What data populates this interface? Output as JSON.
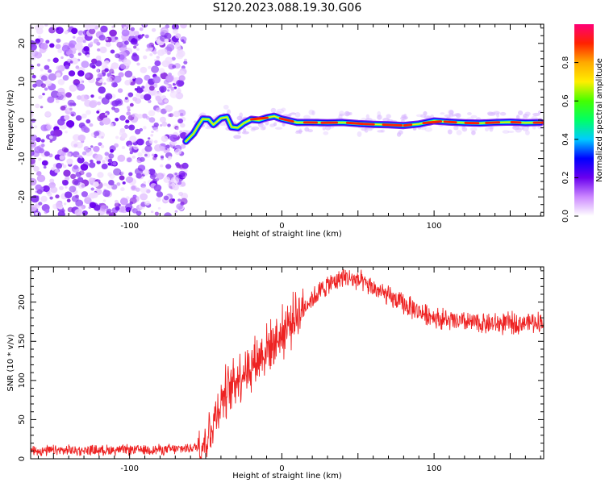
{
  "title": "S120.2023.088.19.30.G06",
  "colors": {
    "snr_line": "#ee2222",
    "noise_purple": "#7a22ee",
    "colorbar_stops": [
      "#ffffff",
      "#cc88ff",
      "#6a00ee",
      "#0000ff",
      "#00ccff",
      "#00ff66",
      "#44ff00",
      "#ffee00",
      "#ffaa00",
      "#ff2200",
      "#ff0077"
    ]
  },
  "chart_data": [
    {
      "type": "heatmap",
      "xlabel": "Height of straight line (km)",
      "ylabel": "Frequency (Hz)",
      "xlim": [
        -165,
        172
      ],
      "ylim": [
        -25,
        25
      ],
      "xticks": [
        -100,
        0,
        100
      ],
      "yticks": [
        -20,
        -10,
        0,
        10,
        20
      ],
      "noise_region_x": [
        -165,
        -63
      ],
      "track": {
        "x": [
          -63,
          -58,
          -55,
          -52,
          -48,
          -45,
          -40,
          -36,
          -33,
          -29,
          -25,
          -20,
          -15,
          -10,
          -5,
          0,
          10,
          20,
          30,
          40,
          50,
          60,
          70,
          80,
          90,
          100,
          110,
          120,
          130,
          140,
          150,
          160,
          170
        ],
        "freq_hz": [
          -5.5,
          -3.5,
          -1.5,
          0.3,
          0.2,
          -1.2,
          0.5,
          0.8,
          -1.8,
          -2.0,
          -0.8,
          0.2,
          0.0,
          0.6,
          1.0,
          0.3,
          -0.6,
          -0.6,
          -0.7,
          -0.6,
          -0.9,
          -1.1,
          -1.2,
          -1.4,
          -1.0,
          -0.2,
          -0.5,
          -0.7,
          -0.8,
          -0.6,
          -0.5,
          -0.7,
          -0.6
        ]
      },
      "colorbar": {
        "label": "Normalized spectral amplitude",
        "range": [
          0.0,
          1.0
        ],
        "ticks": [
          "0.0",
          "0.2",
          "0.4",
          "0.6",
          "0.8"
        ]
      }
    },
    {
      "type": "line",
      "xlabel": "Height of straight line (km)",
      "ylabel": "SNR (10 * v/v)",
      "xlim": [
        -165,
        172
      ],
      "ylim": [
        0,
        245
      ],
      "xticks": [
        -100,
        0,
        100
      ],
      "yticks": [
        0,
        50,
        100,
        150,
        200
      ],
      "series": [
        {
          "x": [
            -165,
            -120,
            -70,
            -55,
            -50,
            -45,
            -40,
            -35,
            -30,
            -20,
            -10,
            0,
            10,
            20,
            30,
            40,
            50,
            60,
            70,
            80,
            90,
            100,
            110,
            120,
            130,
            140,
            150,
            160,
            172
          ],
          "values": [
            10,
            11,
            12,
            15,
            25,
            45,
            75,
            90,
            102,
            120,
            140,
            160,
            185,
            205,
            222,
            232,
            228,
            218,
            207,
            197,
            188,
            181,
            176,
            174,
            173,
            172,
            173,
            174,
            175
          ]
        }
      ]
    }
  ]
}
